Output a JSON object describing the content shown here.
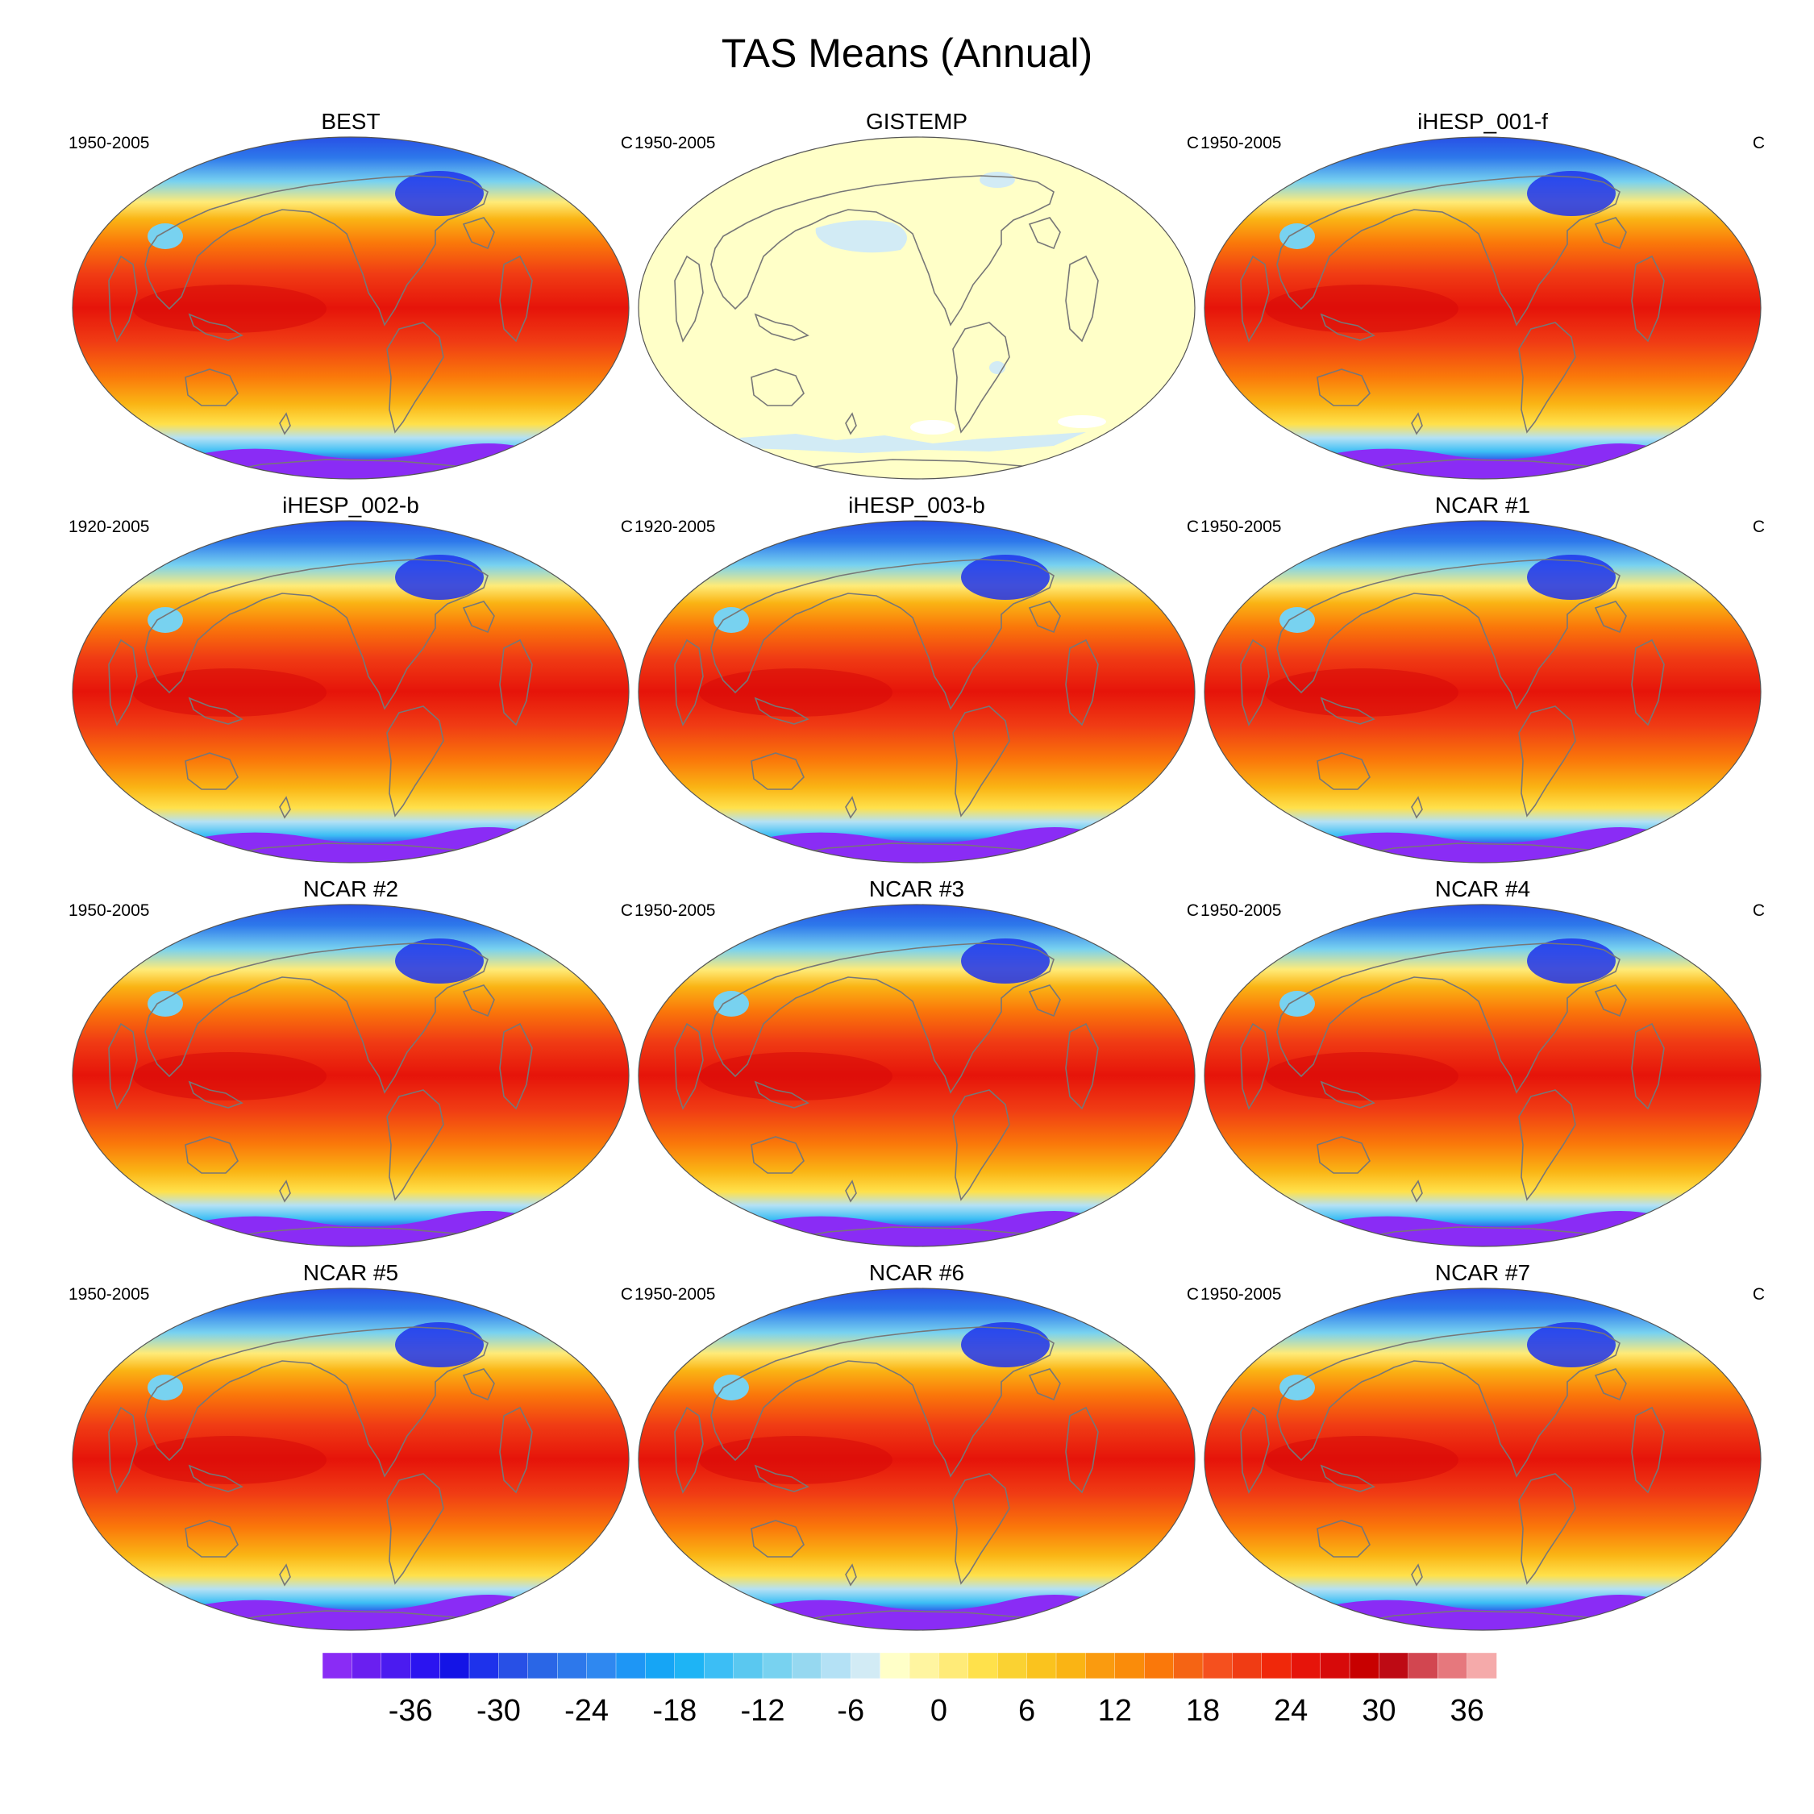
{
  "title": "TAS Means (Annual)",
  "panels": [
    {
      "name": "BEST",
      "period": "1950-2005",
      "unit": "C",
      "kind": "temperature"
    },
    {
      "name": "GISTEMP",
      "period": "1950-2005",
      "unit": "C",
      "kind": "flat"
    },
    {
      "name": "iHESP_001-f",
      "period": "1950-2005",
      "unit": "C",
      "kind": "temperature"
    },
    {
      "name": "iHESP_002-b",
      "period": "1920-2005",
      "unit": "C",
      "kind": "temperature"
    },
    {
      "name": "iHESP_003-b",
      "period": "1920-2005",
      "unit": "C",
      "kind": "temperature"
    },
    {
      "name": "NCAR #1",
      "period": "1950-2005",
      "unit": "C",
      "kind": "temperature"
    },
    {
      "name": "NCAR #2",
      "period": "1950-2005",
      "unit": "C",
      "kind": "temperature"
    },
    {
      "name": "NCAR #3",
      "period": "1950-2005",
      "unit": "C",
      "kind": "temperature"
    },
    {
      "name": "NCAR #4",
      "period": "1950-2005",
      "unit": "C",
      "kind": "temperature"
    },
    {
      "name": "NCAR #5",
      "period": "1950-2005",
      "unit": "C",
      "kind": "temperature"
    },
    {
      "name": "NCAR #6",
      "period": "1950-2005",
      "unit": "C",
      "kind": "temperature"
    },
    {
      "name": "NCAR #7",
      "period": "1950-2005",
      "unit": "C",
      "kind": "temperature"
    }
  ],
  "colorbar": {
    "ticks": [
      "-36",
      "-30",
      "-24",
      "-18",
      "-12",
      "-6",
      "0",
      "6",
      "12",
      "18",
      "24",
      "30",
      "36"
    ],
    "colors": [
      "#8a2cf5",
      "#6a1ff0",
      "#4b1bf0",
      "#2b14f0",
      "#1414e6",
      "#1e32eb",
      "#2850e6",
      "#2a66e6",
      "#2d78eb",
      "#2f88f0",
      "#1e96f5",
      "#16a5f5",
      "#1eb4f5",
      "#3cbef5",
      "#5ac8f0",
      "#78d2f0",
      "#96d8f0",
      "#b4e1f5",
      "#d2ebf5",
      "#ffffc8",
      "#fff5a0",
      "#ffeb78",
      "#ffe14b",
      "#fad232",
      "#fac31e",
      "#fab414",
      "#fa9b0f",
      "#fa8c0a",
      "#fa780a",
      "#f56414",
      "#f5501e",
      "#f03c14",
      "#f0280a",
      "#e6140a",
      "#d70a0a",
      "#c80000",
      "#be0a14",
      "#d24650",
      "#e6787d",
      "#f5aaaa"
    ]
  }
}
